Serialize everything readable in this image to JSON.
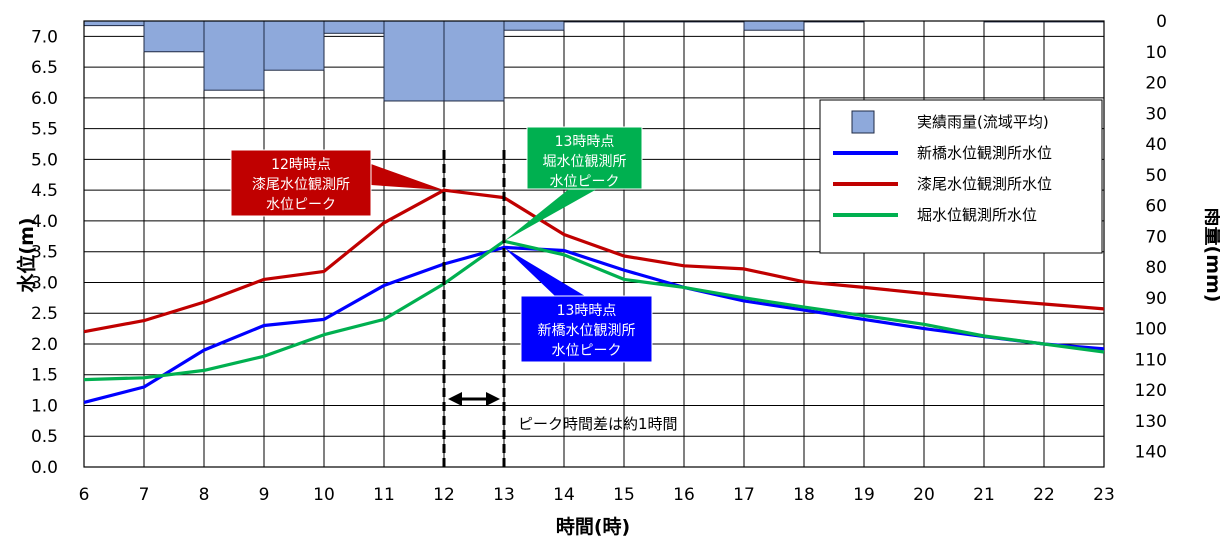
{
  "chart_data": {
    "type": "bar+line",
    "xlabel": "時間(時)",
    "ylabel_left": "水位(m)",
    "ylabel_right": "雨量(mm)",
    "x_ticks": [
      "6",
      "7",
      "8",
      "9",
      "10",
      "11",
      "12",
      "13",
      "14",
      "15",
      "16",
      "17",
      "18",
      "19",
      "20",
      "21",
      "22",
      "23"
    ],
    "y_left_ticks": [
      "0.0",
      "0.5",
      "1.0",
      "1.5",
      "2.0",
      "2.5",
      "3.0",
      "3.5",
      "4.0",
      "4.5",
      "5.0",
      "5.5",
      "6.0",
      "6.5",
      "7.0"
    ],
    "y_right_ticks": [
      "0",
      "10",
      "20",
      "30",
      "40",
      "50",
      "60",
      "70",
      "80",
      "90",
      "100",
      "110",
      "120",
      "130",
      "140"
    ],
    "xlim": [
      6,
      23
    ],
    "ylim_left": [
      0,
      7.25
    ],
    "ylim_right": [
      0,
      145
    ],
    "rain_series": {
      "name": "実績雨量(流域平均)",
      "color": "#8EA9DB",
      "interval_starts": [
        6,
        7,
        8,
        9,
        10,
        11,
        12,
        13,
        14,
        15,
        16,
        17,
        18,
        19,
        20,
        21,
        22
      ],
      "values": [
        1.5,
        10,
        22.5,
        16,
        4,
        26,
        26,
        3,
        0.3,
        0.3,
        0.3,
        3,
        0.3,
        0,
        0,
        0.3,
        0.3
      ]
    },
    "series": [
      {
        "name": "新橋水位観測所水位",
        "color": "#0000FF",
        "x": [
          6,
          7,
          8,
          9,
          10,
          11,
          12,
          13,
          14,
          15,
          16,
          17,
          18,
          19,
          20,
          21,
          22,
          23
        ],
        "values": [
          1.05,
          1.3,
          1.9,
          2.3,
          2.4,
          2.95,
          3.3,
          3.57,
          3.52,
          3.2,
          2.92,
          2.7,
          2.55,
          2.4,
          2.25,
          2.12,
          2.0,
          1.92
        ]
      },
      {
        "name": "漆尾水位観測所水位",
        "color": "#C00000",
        "x": [
          6,
          7,
          8,
          9,
          10,
          11,
          12,
          13,
          14,
          15,
          16,
          17,
          18,
          19,
          20,
          21,
          22,
          23
        ],
        "values": [
          2.2,
          2.38,
          2.68,
          3.05,
          3.18,
          3.97,
          4.5,
          4.38,
          3.78,
          3.43,
          3.27,
          3.22,
          3.01,
          2.92,
          2.82,
          2.73,
          2.65,
          2.57
        ]
      },
      {
        "name": "堀水位観測所水位",
        "color": "#00B050",
        "x": [
          6,
          7,
          8,
          9,
          10,
          11,
          12,
          13,
          14,
          15,
          16,
          17,
          18,
          19,
          20,
          21,
          22,
          23
        ],
        "values": [
          1.42,
          1.45,
          1.57,
          1.8,
          2.15,
          2.4,
          2.98,
          3.67,
          3.45,
          3.05,
          2.92,
          2.75,
          2.6,
          2.46,
          2.32,
          2.13,
          2.0,
          1.87
        ]
      }
    ],
    "grid": true,
    "legend_position": "top-right",
    "annotations": [
      {
        "name": "urushio-peak",
        "lines": [
          "12時時点",
          "漆尾水位観測所",
          "水位ピーク"
        ],
        "bg": "#C00000",
        "target": [
          12,
          4.5
        ]
      },
      {
        "name": "hori-peak",
        "lines": [
          "13時時点",
          "堀水位観測所",
          "水位ピーク"
        ],
        "bg": "#00B050",
        "target": [
          13,
          3.67
        ]
      },
      {
        "name": "shinbashi-peak",
        "lines": [
          "13時時点",
          "新橋水位観測所",
          "水位ピーク"
        ],
        "bg": "#0000FF",
        "target": [
          13,
          3.57
        ]
      }
    ],
    "peak_markers": [
      12,
      13
    ],
    "peak_diff_text": "ピーク時間差は約1時間"
  }
}
